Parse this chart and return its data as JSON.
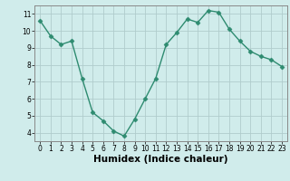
{
  "x": [
    0,
    1,
    2,
    3,
    4,
    5,
    6,
    7,
    8,
    9,
    10,
    11,
    12,
    13,
    14,
    15,
    16,
    17,
    18,
    19,
    20,
    21,
    22,
    23
  ],
  "y": [
    10.6,
    9.7,
    9.2,
    9.4,
    7.2,
    5.2,
    4.7,
    4.1,
    3.8,
    4.8,
    6.0,
    7.2,
    9.2,
    9.9,
    10.7,
    10.5,
    11.2,
    11.1,
    10.1,
    9.4,
    8.8,
    8.5,
    8.3,
    7.9
  ],
  "line_color": "#2e8b70",
  "marker": "D",
  "marker_size": 2.5,
  "bg_color": "#d0eceb",
  "grid_color": "#b0cccc",
  "grid_minor_color": "#c8dcdb",
  "xlabel": "Humidex (Indice chaleur)",
  "ylim": [
    3.5,
    11.5
  ],
  "xlim": [
    -0.5,
    23.5
  ],
  "yticks": [
    4,
    5,
    6,
    7,
    8,
    9,
    10,
    11
  ],
  "xticks": [
    0,
    1,
    2,
    3,
    4,
    5,
    6,
    7,
    8,
    9,
    10,
    11,
    12,
    13,
    14,
    15,
    16,
    17,
    18,
    19,
    20,
    21,
    22,
    23
  ],
  "tick_fontsize": 5.5,
  "xlabel_fontsize": 7.5,
  "line_width": 1.0
}
